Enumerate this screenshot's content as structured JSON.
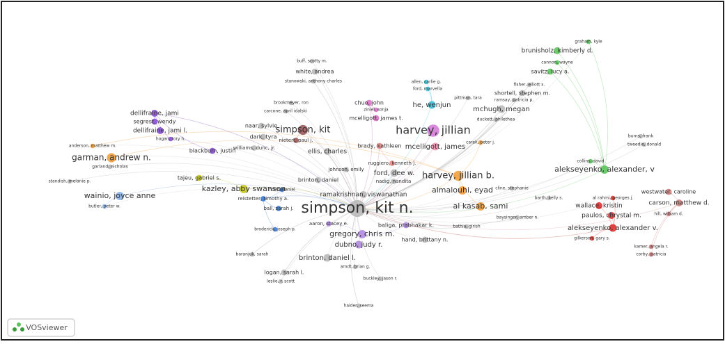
{
  "logo": "VOSviewer",
  "nodes": [
    {
      "label": "graham, kyle",
      "color": "#5cc35c"
    },
    {
      "label": "brunisholz, kimberly d.",
      "color": "#5cc35c"
    },
    {
      "label": "cannon, wayne",
      "color": "#5cc35c"
    },
    {
      "label": "savitz, lucy a.",
      "color": "#5cc35c"
    },
    {
      "label": "buff, scotty m.",
      "color": "#b9b9b9"
    },
    {
      "label": "white, andrea",
      "color": "#b9b9b9"
    },
    {
      "label": "stanowski, anthony charles",
      "color": "#b9b9b9"
    },
    {
      "label": "allen, carlie g.",
      "color": "#3cc0d8"
    },
    {
      "label": "ford, marvella",
      "color": "#3cc0d8"
    },
    {
      "label": "fisher, elliott s.",
      "color": "#b9b9b9"
    },
    {
      "label": "pittman, tara",
      "color": "#b9b9b9"
    },
    {
      "label": "ramsay, patricia p.",
      "color": "#b9b9b9"
    },
    {
      "label": "shortell, stephen m.",
      "color": "#b9b9b9"
    },
    {
      "label": "brookmeyer, ron",
      "color": "#b9b9b9"
    },
    {
      "label": "carcone, april idalski",
      "color": "#b9b9b9"
    },
    {
      "label": "chuo, john",
      "color": "#d878c8"
    },
    {
      "label": "ziniel, sonja",
      "color": "#d878c8"
    },
    {
      "label": "he, wenjun",
      "color": "#3cc0d8"
    },
    {
      "label": "mchugh, megan",
      "color": "#b9b9b9"
    },
    {
      "label": "mcelligott, james t.",
      "color": "#d878c8"
    },
    {
      "label": "duckett, philethea",
      "color": "#b9b9b9"
    },
    {
      "label": "dellifraine, jami",
      "color": "#8a4fd6"
    },
    {
      "label": "segrest, wendy",
      "color": "#8a4fd6"
    },
    {
      "label": "dellifraine, jami l.",
      "color": "#8a4fd6"
    },
    {
      "label": "hogan, tory h.",
      "color": "#8a4fd6"
    },
    {
      "label": "naar, sylvie",
      "color": "#b9b9b9"
    },
    {
      "label": "simpson, kit",
      "color": "#9c5a5a"
    },
    {
      "label": "harvey, jillian",
      "color": "#d47cd6"
    },
    {
      "label": "dark, tyra",
      "color": "#b9b9b9"
    },
    {
      "label": "nietert, paul j.",
      "color": "#9c5a5a"
    },
    {
      "label": "brady, kathleen",
      "color": "#e8888a"
    },
    {
      "label": "mcelligott, james",
      "color": "#f090b0"
    },
    {
      "label": "carek, peter j.",
      "color": "#f0a040"
    },
    {
      "label": "anderson, matthew m.",
      "color": "#f0a040"
    },
    {
      "label": "blackburn, justin",
      "color": "#8a4fd6"
    },
    {
      "label": "williams, dunc, jr.",
      "color": "#b9b9b9"
    },
    {
      "label": "garman, andrew n.",
      "color": "#f0a040"
    },
    {
      "label": "garland, nicholas",
      "color": "#b9b9b9"
    },
    {
      "label": "ellis, charles",
      "color": "#b9b9b9"
    },
    {
      "label": "ruggiero, kenneth j.",
      "color": "#e8888a"
    },
    {
      "label": "burns, frank",
      "color": "#b9b9b9"
    },
    {
      "label": "tweedie, donald",
      "color": "#b9b9b9"
    },
    {
      "label": "collins, david",
      "color": "#5cc35c"
    },
    {
      "label": "alekseyenko, alexander, v",
      "color": "#5cc35c"
    },
    {
      "label": "johnson, emily",
      "color": "#b9b9b9"
    },
    {
      "label": "ford, dee w.",
      "color": "#b9b9b9"
    },
    {
      "label": "harvey, jillian b.",
      "color": "#f0a040"
    },
    {
      "label": "brinton, daniel",
      "color": "#b9b9b9"
    },
    {
      "label": "nadig, nandita",
      "color": "#b9b9b9"
    },
    {
      "label": "standish, melanie p.",
      "color": "#b9b9b9"
    },
    {
      "label": "tajeu, gabriel s.",
      "color": "#c8c820"
    },
    {
      "label": "kazley, abby swanson",
      "color": "#c8c820"
    },
    {
      "label": "horio, daniel",
      "color": "#3a7bd5"
    },
    {
      "label": "ramakrishnan, viswanathan",
      "color": "#b9b9b9"
    },
    {
      "label": "almalouhi, eyad",
      "color": "#f0a040"
    },
    {
      "label": "cline, stephanie",
      "color": "#b9b9b9"
    },
    {
      "label": "westwater, caroline",
      "color": "#d08080"
    },
    {
      "label": "wainio, joyce anne",
      "color": "#8ab4e8"
    },
    {
      "label": "reistetter, timothy a.",
      "color": "#3a7bd5"
    },
    {
      "label": "barth, kelly s.",
      "color": "#b9b9b9"
    },
    {
      "label": "al rahmi, georges j.",
      "color": "#e03030"
    },
    {
      "label": "wallace, kristin",
      "color": "#e03030"
    },
    {
      "label": "carson, matthew d.",
      "color": "#d08080"
    },
    {
      "label": "butler, peter w.",
      "color": "#8ab4e8"
    },
    {
      "label": "ball, sarah j.",
      "color": "#3a7bd5"
    },
    {
      "label": "simpson, kit n.",
      "color": "#b9b9b9"
    },
    {
      "label": "al kasab, sami",
      "color": "#f0a040"
    },
    {
      "label": "paulos, chrystal m.",
      "color": "#e03030"
    },
    {
      "label": "hill, william d.",
      "color": "#d08080"
    },
    {
      "label": "baysinger, amber n.",
      "color": "#b9b9b9"
    },
    {
      "label": "aaron, stacey e.",
      "color": "#b08ae0"
    },
    {
      "label": "baliga, prabhakar k.",
      "color": "#b08ae0"
    },
    {
      "label": "bathia, girish",
      "color": "#b9b9b9"
    },
    {
      "label": "broderick, joseph p.",
      "color": "#3a7bd5"
    },
    {
      "label": "gregory, chris m.",
      "color": "#b08ae0"
    },
    {
      "label": "alekseyenko, alexander v.",
      "color": "#e03030"
    },
    {
      "label": "gilkerson, gary s.",
      "color": "#e03030"
    },
    {
      "label": "hand, brittany n.",
      "color": "#b9b9b9"
    },
    {
      "label": "dubno, judy r.",
      "color": "#b08ae0"
    },
    {
      "label": "kamer, angela r.",
      "color": "#d08080"
    },
    {
      "label": "corby, patricia",
      "color": "#d08080"
    },
    {
      "label": "baranjuk, sarah",
      "color": "#b9b9b9"
    },
    {
      "label": "brinton, daniel l.",
      "color": "#b9b9b9"
    },
    {
      "label": "arndt, brian g.",
      "color": "#b9b9b9"
    },
    {
      "label": "logan, sarah l.",
      "color": "#b9b9b9"
    },
    {
      "label": "buckley, jason r.",
      "color": "#b9b9b9"
    },
    {
      "label": "leslie, r. scott",
      "color": "#b9b9b9"
    },
    {
      "label": "haider, seema",
      "color": "#b9b9b9"
    }
  ]
}
